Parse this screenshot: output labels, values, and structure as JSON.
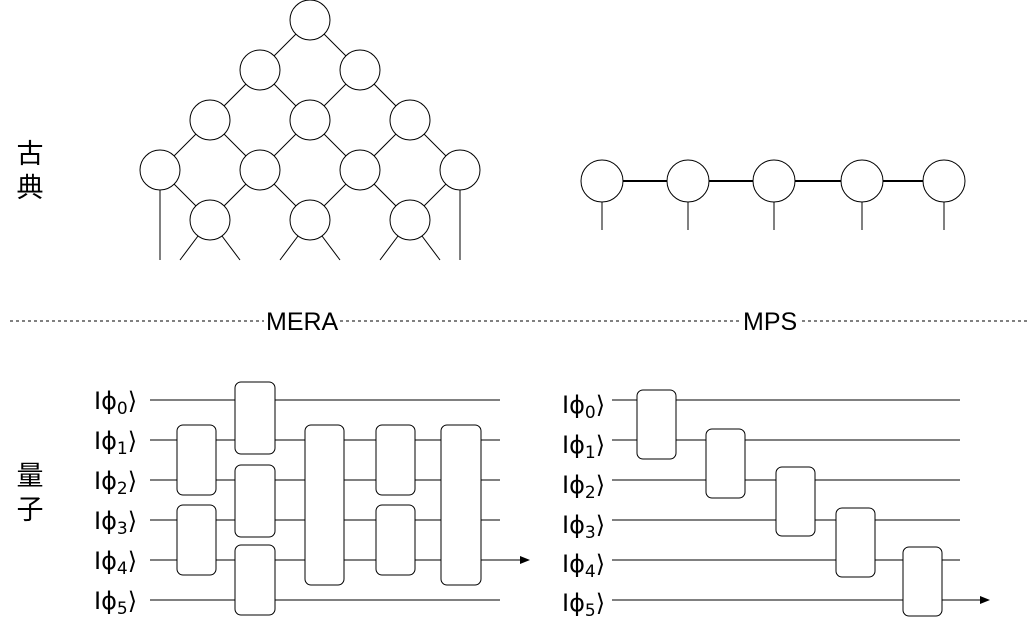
{
  "labels": {
    "classical": [
      "古",
      "典"
    ],
    "quantum": [
      "量",
      "子"
    ],
    "mera": "MERA",
    "mps": "MPS"
  },
  "kets": {
    "prefix": "Iϕ",
    "suffix": "⟩",
    "indices": [
      "0",
      "1",
      "2",
      "3",
      "4",
      "5"
    ]
  },
  "colors": {
    "line": "#000000",
    "node_fill": "#ffffff",
    "separator": "#000000"
  }
}
